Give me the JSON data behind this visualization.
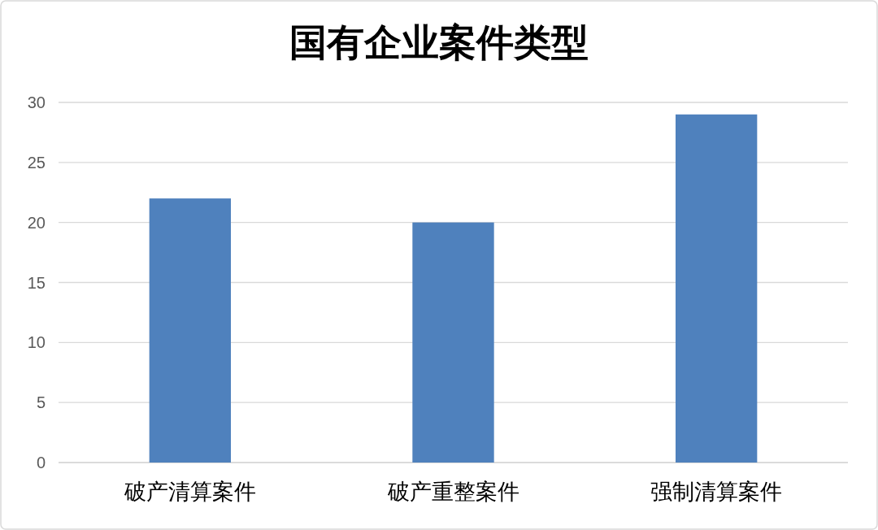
{
  "chart_data": {
    "type": "bar",
    "title": "国有企业案件类型",
    "categories": [
      "破产清算案件",
      "破产重整案件",
      "强制清算案件"
    ],
    "values": [
      22,
      20,
      29
    ],
    "color": "#4f81bd",
    "ylim": [
      0,
      30
    ],
    "yticks": [
      0,
      5,
      10,
      15,
      20,
      25,
      30
    ],
    "grid": "y"
  }
}
